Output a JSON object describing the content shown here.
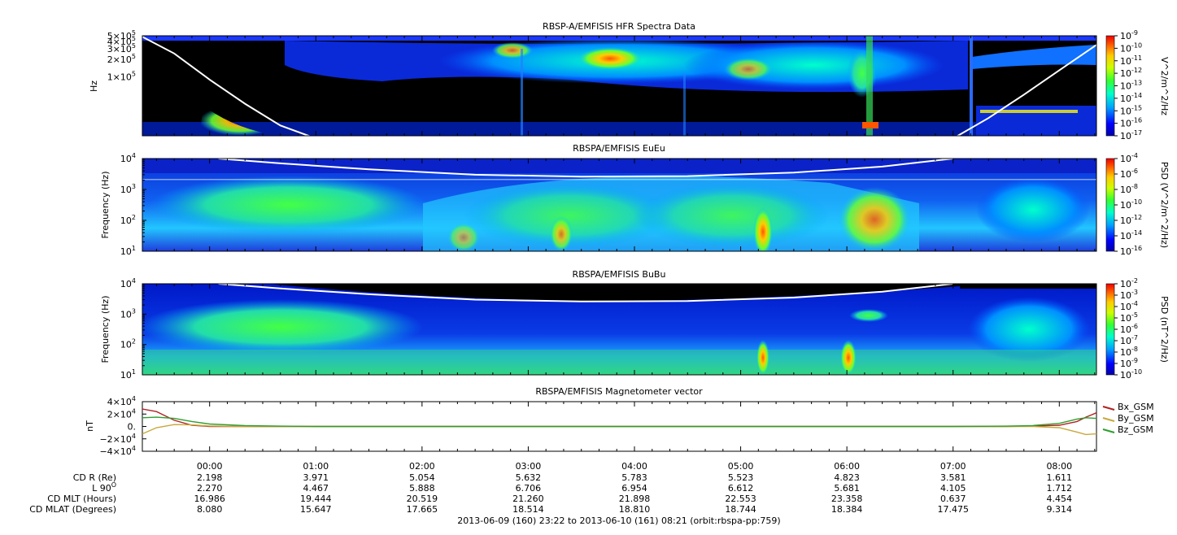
{
  "chart_data": [
    {
      "type": "heatmap",
      "title": "RBSP-A/EMFISIS  HFR Spectra Data",
      "ylabel": "Hz",
      "y_scale": "log",
      "ylim": [
        10000,
        500000
      ],
      "y_ticks": [
        {
          "v": 500000,
          "m": "5×10",
          "e": "5"
        },
        {
          "v": 400000,
          "m": "4×10",
          "e": "5"
        },
        {
          "v": 300000,
          "m": "3×10",
          "e": "5"
        },
        {
          "v": 200000,
          "m": "2×10",
          "e": "5"
        },
        {
          "v": 100000,
          "m": "1×10",
          "e": "5"
        }
      ],
      "colorbar": {
        "label": "V^2/m^2/Hz",
        "scale": "log",
        "range_exp": [
          -17,
          -9
        ],
        "ticks": [
          "-9",
          "-10",
          "-11",
          "-12",
          "-13",
          "-14",
          "-15",
          "-16",
          "-17"
        ]
      },
      "overlay_line": {
        "color": "#ffffff",
        "x": [
          "23:22",
          "23:40",
          "00:00",
          "00:20",
          "00:40",
          "01:00",
          "07:00",
          "07:20",
          "07:40",
          "08:00",
          "08:21"
        ],
        "y": [
          480000,
          250000,
          90000,
          35000,
          15000,
          9000,
          9000,
          20000,
          50000,
          130000,
          350000
        ]
      },
      "features": [
        {
          "x_start": "23:30",
          "x_end": "00:45",
          "y": 12000,
          "level_exp": -10,
          "desc_name": "low-freq emission"
        },
        {
          "x_start": "02:30",
          "x_end": "06:40",
          "y": 230000,
          "level_exp": -12,
          "desc_name": "upper band"
        }
      ]
    },
    {
      "type": "heatmap",
      "title": "RBSPA/EMFISIS  EuEu",
      "ylabel": "Frequency (Hz)",
      "y_scale": "log",
      "ylim": [
        10,
        10000
      ],
      "y_ticks": [
        {
          "v": 10,
          "e": "1"
        },
        {
          "v": 100,
          "e": "2"
        },
        {
          "v": 1000,
          "e": "3"
        },
        {
          "v": 10000,
          "e": "4"
        }
      ],
      "colorbar": {
        "label": "PSD (V^2/m^2/Hz)",
        "scale": "log",
        "range_exp": [
          -16,
          -4
        ],
        "ticks": [
          "-4",
          "-6",
          "-8",
          "-10",
          "-12",
          "-14",
          "-16"
        ]
      },
      "overlay_line": {
        "color": "#ffffff",
        "x": [
          "00:05",
          "00:40",
          "01:30",
          "02:30",
          "03:30",
          "04:30",
          "05:30",
          "06:20",
          "07:00"
        ],
        "y": [
          10000,
          7000,
          4500,
          3000,
          2600,
          2700,
          3500,
          5500,
          10000
        ]
      }
    },
    {
      "type": "heatmap",
      "title": "RBSPA/EMFISIS  BuBu",
      "ylabel": "Frequency (Hz)",
      "y_scale": "log",
      "ylim": [
        10,
        10000
      ],
      "y_ticks": [
        {
          "v": 10,
          "e": "1"
        },
        {
          "v": 100,
          "e": "2"
        },
        {
          "v": 1000,
          "e": "3"
        },
        {
          "v": 10000,
          "e": "4"
        }
      ],
      "colorbar": {
        "label": "PSD (nT^2/Hz)",
        "scale": "log",
        "range_exp": [
          -10,
          -2
        ],
        "ticks": [
          "-2",
          "-3",
          "-4",
          "-5",
          "-6",
          "-7",
          "-8",
          "-9",
          "-10"
        ]
      },
      "overlay_line": {
        "color": "#ffffff",
        "x": [
          "00:05",
          "00:40",
          "01:30",
          "02:30",
          "03:30",
          "04:30",
          "05:30",
          "06:20",
          "07:00"
        ],
        "y": [
          10000,
          7000,
          4500,
          3000,
          2600,
          2700,
          3500,
          5500,
          10000
        ]
      }
    },
    {
      "type": "line",
      "title": "RBSPA/EMFISIS  Magnetometer vector",
      "ylabel": "nT",
      "ylim": [
        -40000,
        40000
      ],
      "y_ticks": [
        {
          "v": 40000,
          "t": "4×10",
          "e": "4"
        },
        {
          "v": 20000,
          "t": "2×10",
          "e": "4"
        },
        {
          "v": 0,
          "t": "0.",
          "e": ""
        },
        {
          "v": -20000,
          "t": "−2×10",
          "e": "4"
        },
        {
          "v": -40000,
          "t": "−4×10",
          "e": "4"
        }
      ],
      "x": [
        "23:22",
        "23:30",
        "23:40",
        "23:50",
        "00:00",
        "00:20",
        "00:40",
        "01:00",
        "04:00",
        "07:00",
        "07:30",
        "07:45",
        "08:00",
        "08:10",
        "08:15",
        "08:21"
      ],
      "series": [
        {
          "name": "Bx_GSM",
          "color": "#b22222",
          "values": [
            28000,
            24000,
            10000,
            2000,
            0,
            0,
            0,
            0,
            0,
            0,
            0,
            500,
            2000,
            8000,
            15000,
            22000
          ]
        },
        {
          "name": "By_GSM",
          "color": "#c8a83c",
          "values": [
            -12000,
            -2000,
            3000,
            2500,
            800,
            0,
            0,
            0,
            0,
            0,
            0,
            0,
            -2000,
            -9000,
            -13000,
            -12000
          ]
        },
        {
          "name": "Bz_GSM",
          "color": "#2e9e2e",
          "values": [
            14000,
            15000,
            13000,
            8000,
            4000,
            1500,
            500,
            0,
            0,
            0,
            500,
            1500,
            5000,
            12000,
            14000,
            13000
          ]
        }
      ]
    }
  ],
  "x_axis": {
    "start": "23:22",
    "end": "08:21",
    "tick_labels": [
      "00:00",
      "01:00",
      "02:00",
      "03:00",
      "04:00",
      "05:00",
      "06:00",
      "07:00",
      "08:00"
    ]
  },
  "ephemeris": {
    "rows": [
      {
        "label": "CD R (Re)",
        "values": [
          "2.198",
          "3.971",
          "5.054",
          "5.632",
          "5.783",
          "5.523",
          "4.823",
          "3.581",
          "1.611"
        ]
      },
      {
        "label": "L 90",
        "sup": "O",
        "values": [
          "2.270",
          "4.467",
          "5.888",
          "6.706",
          "6.954",
          "6.612",
          "5.681",
          "4.105",
          "1.712"
        ]
      },
      {
        "label": "CD MLT (Hours)",
        "values": [
          "16.986",
          "19.444",
          "20.519",
          "21.260",
          "21.898",
          "22.553",
          "23.358",
          "0.637",
          "4.454"
        ]
      },
      {
        "label": "CD MLAT (Degrees)",
        "values": [
          "8.080",
          "15.647",
          "17.665",
          "18.514",
          "18.810",
          "18.744",
          "18.384",
          "17.475",
          "9.314"
        ]
      }
    ]
  },
  "footer": "2013-06-09 (160) 23:22 to 2013-06-10 (161) 08:21 (orbit:rbspa-pp:759)"
}
